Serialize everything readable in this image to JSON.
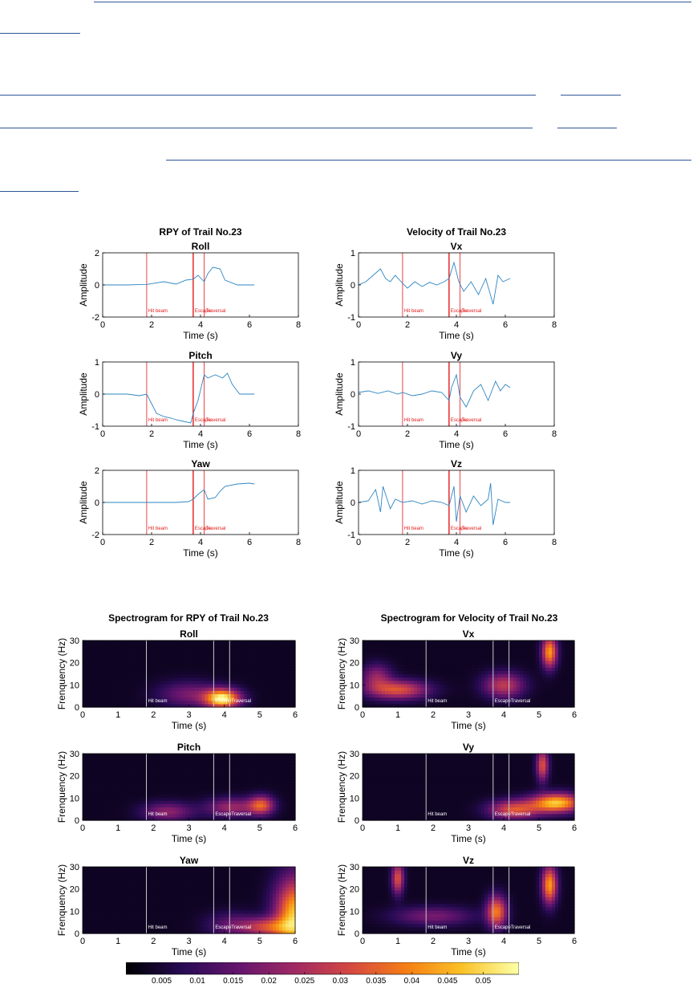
{
  "group_titles": {
    "rpy": "RPY of Trail No.23",
    "vel": "Velocity of Trail No.23",
    "spec_rpy": "Spectrogram for RPY of Trail No.23",
    "spec_vel": "Spectrogram for Velocity of Trail No.23"
  },
  "events": [
    {
      "label": "Hit beam",
      "t": 1.8
    },
    {
      "label": "Escape",
      "t": 3.7
    },
    {
      "label": "Traversal",
      "t": 4.15
    }
  ],
  "colors": {
    "series": "#2e86c1",
    "event_line_time": "#e31a1c",
    "event_line_spec": "#c8c8c8",
    "link": "#2f5597"
  },
  "colorbar": {
    "ticks": [
      0.005,
      0.01,
      0.015,
      0.02,
      0.025,
      0.03,
      0.035,
      0.04,
      0.045,
      0.05
    ],
    "min": 0,
    "max": 0.055,
    "colormap": "inferno"
  },
  "chart_data": [
    {
      "id": "roll",
      "type": "line",
      "title": "Roll",
      "xlabel": "Time (s)",
      "ylabel": "Amplitude",
      "xlim": [
        0,
        8
      ],
      "ylim": [
        -2,
        2
      ],
      "xticks": [
        0,
        2,
        4,
        6,
        8
      ],
      "yticks": [
        -2,
        0,
        2
      ],
      "x": [
        0,
        0.5,
        1,
        1.5,
        1.8,
        2,
        2.5,
        3,
        3.4,
        3.7,
        3.9,
        4.15,
        4.3,
        4.5,
        4.8,
        5,
        5.5,
        6,
        6.2
      ],
      "y": [
        0,
        0,
        0,
        0.02,
        0.03,
        0.08,
        0.2,
        0.05,
        0.3,
        0.35,
        0.6,
        0.2,
        0.7,
        1.1,
        1.0,
        0.3,
        0,
        0,
        0
      ]
    },
    {
      "id": "vx",
      "type": "line",
      "title": "Vx",
      "xlabel": "Time (s)",
      "ylabel": "Amplitude",
      "xlim": [
        0,
        8
      ],
      "ylim": [
        -1,
        1
      ],
      "xticks": [
        0,
        2,
        4,
        6,
        8
      ],
      "yticks": [
        -1,
        0,
        1
      ],
      "x": [
        0,
        0.3,
        0.6,
        0.9,
        1.1,
        1.3,
        1.5,
        1.8,
        2.0,
        2.3,
        2.6,
        2.9,
        3.2,
        3.5,
        3.7,
        3.9,
        4.0,
        4.1,
        4.3,
        4.6,
        4.9,
        5.2,
        5.5,
        5.7,
        5.9,
        6.2
      ],
      "y": [
        0,
        0.1,
        0.3,
        0.5,
        0.2,
        0.1,
        0.3,
        0.05,
        -0.1,
        0.1,
        -0.05,
        0.08,
        0,
        0.1,
        0.2,
        0.7,
        0.4,
        0.1,
        -0.2,
        0.1,
        -0.3,
        0.2,
        -0.6,
        0.3,
        0.1,
        0.2
      ]
    },
    {
      "id": "pitch",
      "type": "line",
      "title": "Pitch",
      "xlabel": "Time (s)",
      "ylabel": "Amplitude",
      "xlim": [
        0,
        8
      ],
      "ylim": [
        -1,
        1
      ],
      "xticks": [
        0,
        2,
        4,
        6,
        8
      ],
      "yticks": [
        -1,
        0,
        1
      ],
      "x": [
        0,
        0.5,
        1,
        1.5,
        1.8,
        2,
        2.2,
        2.5,
        2.8,
        3.0,
        3.3,
        3.6,
        3.7,
        3.9,
        4.15,
        4.3,
        4.6,
        4.9,
        5.1,
        5.3,
        5.6,
        6.0,
        6.2
      ],
      "y": [
        0,
        0,
        0,
        -0.05,
        0,
        -0.3,
        -0.6,
        -0.7,
        -0.75,
        -0.8,
        -0.85,
        -0.9,
        -0.6,
        -0.2,
        0.6,
        0.5,
        0.6,
        0.5,
        0.65,
        0.3,
        0,
        0,
        0
      ]
    },
    {
      "id": "vy",
      "type": "line",
      "title": "Vy",
      "xlabel": "Time (s)",
      "ylabel": "Amplitude",
      "xlim": [
        0,
        8
      ],
      "ylim": [
        -1,
        1
      ],
      "xticks": [
        0,
        2,
        4,
        6,
        8
      ],
      "yticks": [
        -1,
        0,
        1
      ],
      "x": [
        0,
        0.4,
        0.8,
        1.2,
        1.6,
        1.8,
        2.2,
        2.6,
        3.0,
        3.4,
        3.7,
        3.8,
        4.0,
        4.15,
        4.4,
        4.7,
        5.0,
        5.3,
        5.6,
        5.8,
        6.0,
        6.2
      ],
      "y": [
        0.05,
        0.1,
        0.02,
        0.1,
        0,
        0.05,
        -0.05,
        0,
        0.1,
        0.05,
        -0.2,
        0.2,
        0.6,
        -0.1,
        -0.4,
        0.1,
        0.3,
        -0.2,
        0.4,
        0.1,
        0.3,
        0.2
      ]
    },
    {
      "id": "yaw",
      "type": "line",
      "title": "Yaw",
      "xlabel": "Time (s)",
      "ylabel": "Amplitude",
      "xlim": [
        0,
        8
      ],
      "ylim": [
        -2,
        2
      ],
      "xticks": [
        0,
        2,
        4,
        6,
        8
      ],
      "yticks": [
        -2,
        0,
        2
      ],
      "x": [
        0,
        1,
        2,
        2.5,
        3,
        3.5,
        3.7,
        3.9,
        4.15,
        4.3,
        4.6,
        4.8,
        5,
        5.5,
        6,
        6.2
      ],
      "y": [
        0,
        0,
        0,
        0,
        0,
        0.05,
        0.2,
        0.5,
        0.8,
        0.2,
        0.3,
        0.7,
        1.0,
        1.15,
        1.2,
        1.15
      ]
    },
    {
      "id": "vz",
      "type": "line",
      "title": "Vz",
      "xlabel": "Time (s)",
      "ylabel": "Amplitude",
      "xlim": [
        0,
        8
      ],
      "ylim": [
        -1,
        1
      ],
      "xticks": [
        0,
        2,
        4,
        6,
        8
      ],
      "yticks": [
        -1,
        0,
        1
      ],
      "x": [
        0,
        0.4,
        0.7,
        0.9,
        1.0,
        1.3,
        1.5,
        1.8,
        2.2,
        2.6,
        3.0,
        3.4,
        3.7,
        3.9,
        4.0,
        4.15,
        4.4,
        4.7,
        5.0,
        5.3,
        5.4,
        5.5,
        5.7,
        6.0,
        6.2
      ],
      "y": [
        0,
        0.05,
        0.4,
        -0.3,
        0.5,
        -0.2,
        0.1,
        0,
        0.05,
        -0.05,
        0.05,
        0,
        -0.1,
        0.5,
        -0.6,
        0.2,
        -0.3,
        0.2,
        -0.1,
        0.1,
        0.6,
        -0.7,
        0.1,
        0,
        0
      ]
    },
    {
      "id": "spec-roll",
      "type": "heatmap",
      "title": "Roll",
      "xlabel": "Time (s)",
      "ylabel": "Frenquency (Hz)",
      "xlim": [
        0,
        6
      ],
      "ylim": [
        0,
        30
      ],
      "xticks": [
        0,
        1,
        2,
        3,
        4,
        5,
        6
      ],
      "yticks": [
        0,
        10,
        20,
        30
      ],
      "hotspots": [
        {
          "t": 3.95,
          "f": 4,
          "v": 0.05,
          "wt": 0.35,
          "wf": 3
        },
        {
          "t": 3.0,
          "f": 6,
          "v": 0.015,
          "wt": 0.6,
          "wf": 4
        }
      ]
    },
    {
      "id": "spec-vx",
      "type": "heatmap",
      "title": "Vx",
      "xlabel": "Time (s)",
      "ylabel": "Frenquency (Hz)",
      "xlim": [
        0,
        6
      ],
      "ylim": [
        0,
        30
      ],
      "xticks": [
        0,
        1,
        2,
        3,
        4,
        5,
        6
      ],
      "yticks": [
        0,
        10,
        20,
        30
      ],
      "hotspots": [
        {
          "t": 1.0,
          "f": 8,
          "v": 0.03,
          "wt": 0.6,
          "wf": 3
        },
        {
          "t": 4.0,
          "f": 10,
          "v": 0.025,
          "wt": 0.4,
          "wf": 4
        },
        {
          "t": 5.3,
          "f": 25,
          "v": 0.04,
          "wt": 0.15,
          "wf": 5
        },
        {
          "t": 0.4,
          "f": 14,
          "v": 0.018,
          "wt": 0.3,
          "wf": 4
        }
      ]
    },
    {
      "id": "spec-pitch",
      "type": "heatmap",
      "title": "Pitch",
      "xlabel": "Time (s)",
      "ylabel": "Frenquency (Hz)",
      "xlim": [
        0,
        6
      ],
      "ylim": [
        0,
        30
      ],
      "xticks": [
        0,
        1,
        2,
        3,
        4,
        5,
        6
      ],
      "yticks": [
        0,
        10,
        20,
        30
      ],
      "hotspots": [
        {
          "t": 5.05,
          "f": 7,
          "v": 0.03,
          "wt": 0.25,
          "wf": 3
        },
        {
          "t": 2.4,
          "f": 4,
          "v": 0.018,
          "wt": 0.5,
          "wf": 3
        },
        {
          "t": 4.2,
          "f": 6,
          "v": 0.02,
          "wt": 0.5,
          "wf": 3
        }
      ]
    },
    {
      "id": "spec-vy",
      "type": "heatmap",
      "title": "Vy",
      "xlabel": "Time (s)",
      "ylabel": "Frenquency (Hz)",
      "xlim": [
        0,
        6
      ],
      "ylim": [
        0,
        30
      ],
      "xticks": [
        0,
        1,
        2,
        3,
        4,
        5,
        6
      ],
      "yticks": [
        0,
        10,
        20,
        30
      ],
      "hotspots": [
        {
          "t": 5.5,
          "f": 8,
          "v": 0.045,
          "wt": 0.5,
          "wf": 3
        },
        {
          "t": 4.3,
          "f": 5,
          "v": 0.03,
          "wt": 0.5,
          "wf": 3
        },
        {
          "t": 5.1,
          "f": 25,
          "v": 0.03,
          "wt": 0.12,
          "wf": 5
        }
      ]
    },
    {
      "id": "spec-yaw",
      "type": "heatmap",
      "title": "Yaw",
      "xlabel": "Time (s)",
      "ylabel": "Frenquency (Hz)",
      "xlim": [
        0,
        6
      ],
      "ylim": [
        0,
        30
      ],
      "xticks": [
        0,
        1,
        2,
        3,
        4,
        5,
        6
      ],
      "yticks": [
        0,
        10,
        20,
        30
      ],
      "hotspots": [
        {
          "t": 6.0,
          "f": 8,
          "v": 0.045,
          "wt": 0.4,
          "wf": 12
        },
        {
          "t": 5.2,
          "f": 3,
          "v": 0.025,
          "wt": 0.5,
          "wf": 3
        },
        {
          "t": 4.2,
          "f": 4,
          "v": 0.012,
          "wt": 0.5,
          "wf": 4
        }
      ]
    },
    {
      "id": "spec-vz",
      "type": "heatmap",
      "title": "Vz",
      "xlabel": "Time (s)",
      "ylabel": "Frenquency (Hz)",
      "xlim": [
        0,
        6
      ],
      "ylim": [
        0,
        30
      ],
      "xticks": [
        0,
        1,
        2,
        3,
        4,
        5,
        6
      ],
      "yticks": [
        0,
        10,
        20,
        30
      ],
      "hotspots": [
        {
          "t": 3.8,
          "f": 10,
          "v": 0.035,
          "wt": 0.2,
          "wf": 5
        },
        {
          "t": 5.3,
          "f": 22,
          "v": 0.04,
          "wt": 0.15,
          "wf": 6
        },
        {
          "t": 1.0,
          "f": 25,
          "v": 0.03,
          "wt": 0.12,
          "wf": 5
        },
        {
          "t": 2.0,
          "f": 8,
          "v": 0.015,
          "wt": 0.8,
          "wf": 3
        }
      ]
    }
  ]
}
